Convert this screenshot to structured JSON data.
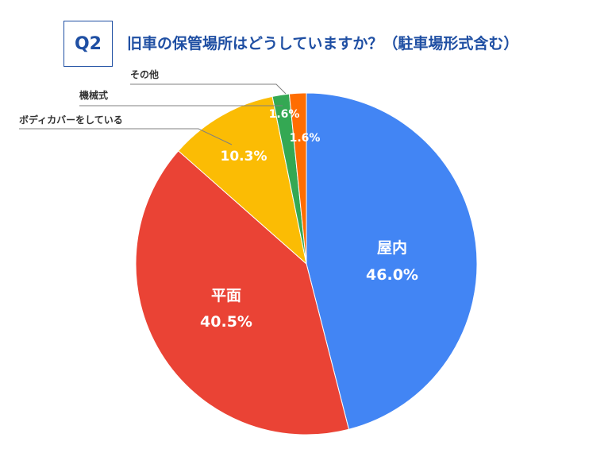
{
  "header": {
    "question_number": "Q2",
    "question_text": "旧車の保管場所はどうしていますか？（駐車場形式含む）"
  },
  "colors": {
    "title": "#1f4fa3",
    "label_text": "#ffffff",
    "leader_line": "#808080",
    "callout_text": "#333333"
  },
  "chart_data": {
    "type": "pie",
    "title": "旧車の保管場所はどうしていますか？（駐車場形式含む）",
    "start_angle_deg": 0,
    "direction": "clockwise",
    "slices": [
      {
        "label": "屋内",
        "value": 46.0,
        "value_label": "46.0%",
        "color": "#4285f4",
        "label_inside": true
      },
      {
        "label": "平面",
        "value": 40.5,
        "value_label": "40.5%",
        "color": "#ea4335",
        "label_inside": true
      },
      {
        "label": "ボディカバーをしている",
        "value": 10.3,
        "value_label": "10.3%",
        "color": "#fbbc04",
        "label_inside": false
      },
      {
        "label": "機械式",
        "value": 1.6,
        "value_label": "1.6%",
        "color": "#34a853",
        "label_inside": false
      },
      {
        "label": "その他",
        "value": 1.6,
        "value_label": "1.6%",
        "color": "#ff6d01",
        "label_inside": false
      }
    ]
  }
}
